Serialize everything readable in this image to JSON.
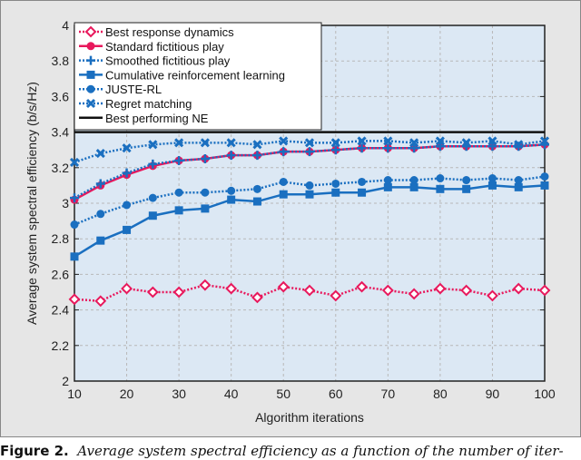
{
  "caption": {
    "label": "Figure 2.",
    "text": "Average system spectral efficiency as a function of the number of iter-"
  },
  "chart_data": {
    "type": "line",
    "title": "",
    "xlabel": "Algorithm iterations",
    "ylabel": "Average system spectral efficiency (b/s/Hz)",
    "xlim": [
      10,
      100
    ],
    "ylim": [
      2,
      4
    ],
    "xticks": [
      10,
      20,
      30,
      40,
      50,
      60,
      70,
      80,
      90,
      100
    ],
    "yticks": [
      2,
      2.2,
      2.4,
      2.6,
      2.8,
      3,
      3.2,
      3.4,
      3.6,
      3.8,
      4
    ],
    "grid": true,
    "legend_position": "upper left",
    "x": [
      10,
      15,
      20,
      25,
      30,
      35,
      40,
      45,
      50,
      55,
      60,
      65,
      70,
      75,
      80,
      85,
      90,
      95,
      100
    ],
    "series": [
      {
        "name": "Best response dynamics",
        "color": "#e8185c",
        "style": "dotted",
        "marker": "diamond-open",
        "values": [
          2.46,
          2.45,
          2.52,
          2.5,
          2.5,
          2.54,
          2.52,
          2.47,
          2.53,
          2.51,
          2.48,
          2.53,
          2.51,
          2.49,
          2.52,
          2.51,
          2.48,
          2.52,
          2.51
        ]
      },
      {
        "name": "Standard fictitious play",
        "color": "#e8185c",
        "style": "solid",
        "marker": "circle",
        "values": [
          3.02,
          3.1,
          3.16,
          3.21,
          3.24,
          3.25,
          3.27,
          3.27,
          3.29,
          3.29,
          3.3,
          3.31,
          3.31,
          3.31,
          3.32,
          3.32,
          3.32,
          3.32,
          3.33
        ]
      },
      {
        "name": "Smoothed fictitious play",
        "color": "#1a6fc0",
        "style": "dotted",
        "marker": "plus",
        "values": [
          3.03,
          3.11,
          3.17,
          3.22,
          3.24,
          3.25,
          3.27,
          3.27,
          3.29,
          3.29,
          3.3,
          3.31,
          3.31,
          3.31,
          3.32,
          3.32,
          3.32,
          3.32,
          3.33
        ]
      },
      {
        "name": "Cumulative reinforcement learning",
        "color": "#1a6fc0",
        "style": "solid",
        "marker": "square",
        "values": [
          2.7,
          2.79,
          2.85,
          2.93,
          2.96,
          2.97,
          3.02,
          3.01,
          3.05,
          3.05,
          3.06,
          3.06,
          3.09,
          3.09,
          3.08,
          3.08,
          3.1,
          3.09,
          3.1
        ]
      },
      {
        "name": "JUSTE-RL",
        "color": "#1a6fc0",
        "style": "dotted",
        "marker": "circle",
        "values": [
          2.88,
          2.94,
          2.99,
          3.03,
          3.06,
          3.06,
          3.07,
          3.08,
          3.12,
          3.1,
          3.11,
          3.12,
          3.13,
          3.13,
          3.14,
          3.13,
          3.14,
          3.13,
          3.15
        ]
      },
      {
        "name": "Regret matching",
        "color": "#1a6fc0",
        "style": "dotted",
        "marker": "x",
        "values": [
          3.23,
          3.28,
          3.31,
          3.33,
          3.34,
          3.34,
          3.34,
          3.33,
          3.35,
          3.34,
          3.34,
          3.35,
          3.35,
          3.34,
          3.35,
          3.34,
          3.35,
          3.33,
          3.35
        ]
      },
      {
        "name": "Best performing NE",
        "color": "#111111",
        "style": "solid",
        "marker": "none",
        "values": [
          3.4,
          3.4,
          3.4,
          3.4,
          3.4,
          3.4,
          3.4,
          3.4,
          3.4,
          3.4,
          3.4,
          3.4,
          3.4,
          3.4,
          3.4,
          3.4,
          3.4,
          3.4,
          3.4
        ]
      }
    ]
  }
}
